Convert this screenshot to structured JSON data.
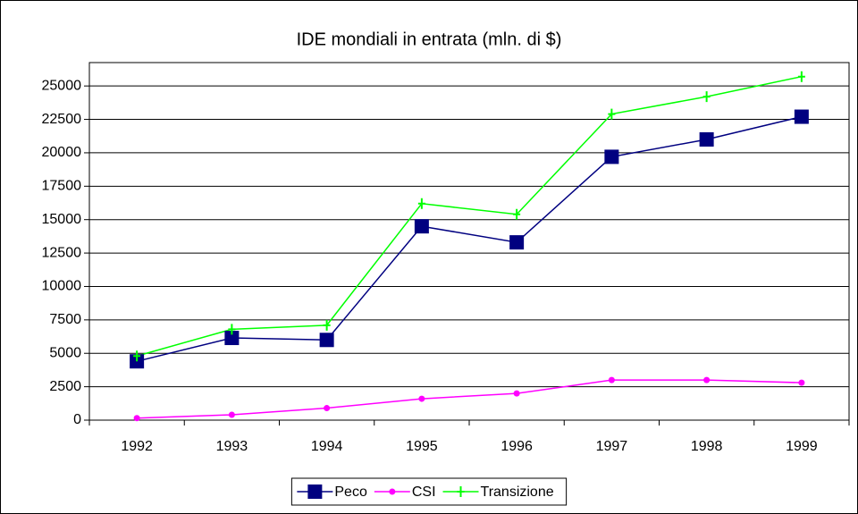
{
  "chart_data": {
    "type": "line",
    "title": "IDE mondiali in entrata (mln. di $)",
    "categories": [
      "1992",
      "1993",
      "1994",
      "1995",
      "1996",
      "1997",
      "1998",
      "1999"
    ],
    "series": [
      {
        "name": "Peco",
        "color": "#000080",
        "marker": "square",
        "values": [
          4400,
          6150,
          6000,
          14500,
          13300,
          19700,
          21000,
          22700
        ]
      },
      {
        "name": "CSI",
        "color": "#ff00ff",
        "marker": "circle",
        "values": [
          150,
          400,
          900,
          1600,
          2000,
          3000,
          3000,
          2800
        ]
      },
      {
        "name": "Transizione",
        "color": "#00ff00",
        "marker": "plus",
        "values": [
          4800,
          6800,
          7100,
          16200,
          15400,
          22900,
          24200,
          25700
        ]
      }
    ],
    "ylim": [
      0,
      26750
    ],
    "yticks": [
      0,
      2500,
      5000,
      7500,
      10000,
      12500,
      15000,
      17500,
      20000,
      22500,
      25000
    ],
    "grid": true,
    "legend": "bottom"
  }
}
